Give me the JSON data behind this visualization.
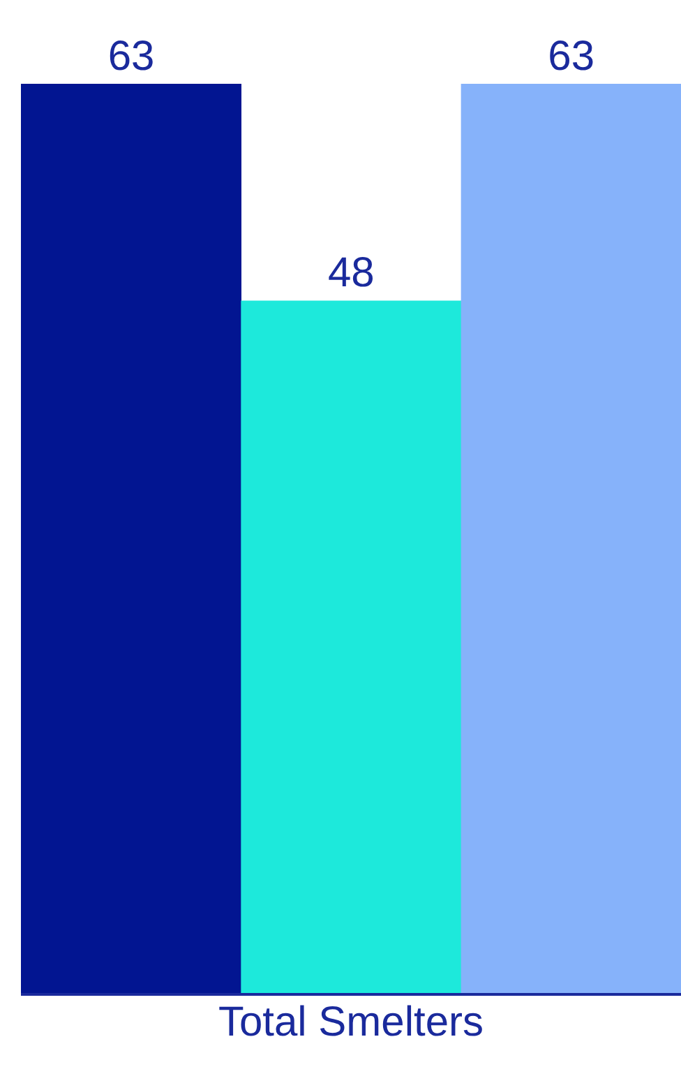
{
  "chart_data": {
    "type": "bar",
    "categories": [
      null,
      "Total Smelters",
      null
    ],
    "values": [
      63,
      48,
      63
    ],
    "colors": [
      "#021591",
      "#1de9db",
      "#86b2fa"
    ],
    "data_labels": true
  }
}
